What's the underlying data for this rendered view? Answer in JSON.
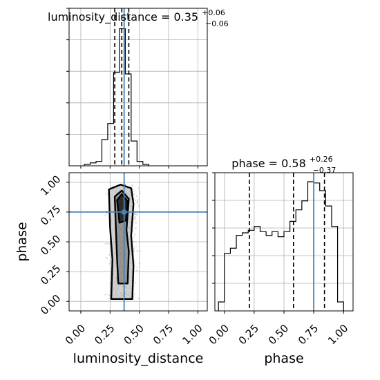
{
  "chart_data": {
    "type": "corner",
    "truths": {
      "luminosity_distance": 0.37,
      "phase": 0.75
    },
    "panels": {
      "lum_hist": {
        "type": "step-histogram",
        "title": {
          "main": "luminosity_distance = 0.35",
          "sup": "+0.06",
          "sub": "−0.06"
        },
        "xlim": [
          -0.1,
          1.08
        ],
        "ylim": [
          0,
          1
        ],
        "bins": [
          {
            "x0": 0.03,
            "x1": 0.08,
            "y": 0.01
          },
          {
            "x0": 0.08,
            "x1": 0.13,
            "y": 0.02
          },
          {
            "x0": 0.13,
            "x1": 0.18,
            "y": 0.03
          },
          {
            "x0": 0.18,
            "x1": 0.23,
            "y": 0.18
          },
          {
            "x0": 0.23,
            "x1": 0.28,
            "y": 0.29
          },
          {
            "x0": 0.28,
            "x1": 0.33,
            "y": 0.64
          },
          {
            "x0": 0.33,
            "x1": 0.38,
            "y": 0.94
          },
          {
            "x0": 0.38,
            "x1": 0.43,
            "y": 0.63
          },
          {
            "x0": 0.43,
            "x1": 0.48,
            "y": 0.17
          },
          {
            "x0": 0.48,
            "x1": 0.53,
            "y": 0.03
          },
          {
            "x0": 0.53,
            "x1": 0.58,
            "y": 0.01
          }
        ],
        "quantiles": [
          0.29,
          0.35,
          0.41
        ]
      },
      "phase_hist": {
        "type": "step-histogram",
        "title": {
          "main": "phase = 0.58",
          "sup": "+0.26",
          "sub": "−0.37"
        },
        "xlim": [
          -0.08,
          1.08
        ],
        "ylim": [
          0,
          1
        ],
        "bins": [
          {
            "x0": -0.05,
            "x1": 0.0,
            "y": 0.07
          },
          {
            "x0": 0.0,
            "x1": 0.05,
            "y": 0.45
          },
          {
            "x0": 0.05,
            "x1": 0.1,
            "y": 0.49
          },
          {
            "x0": 0.1,
            "x1": 0.15,
            "y": 0.59
          },
          {
            "x0": 0.15,
            "x1": 0.2,
            "y": 0.61
          },
          {
            "x0": 0.2,
            "x1": 0.25,
            "y": 0.63
          },
          {
            "x0": 0.25,
            "x1": 0.3,
            "y": 0.66
          },
          {
            "x0": 0.3,
            "x1": 0.35,
            "y": 0.62
          },
          {
            "x0": 0.35,
            "x1": 0.4,
            "y": 0.59
          },
          {
            "x0": 0.4,
            "x1": 0.45,
            "y": 0.62
          },
          {
            "x0": 0.45,
            "x1": 0.5,
            "y": 0.58
          },
          {
            "x0": 0.5,
            "x1": 0.55,
            "y": 0.62
          },
          {
            "x0": 0.55,
            "x1": 0.6,
            "y": 0.7
          },
          {
            "x0": 0.6,
            "x1": 0.65,
            "y": 0.79
          },
          {
            "x0": 0.65,
            "x1": 0.7,
            "y": 0.86
          },
          {
            "x0": 0.7,
            "x1": 0.75,
            "y": 1.01
          },
          {
            "x0": 0.75,
            "x1": 0.8,
            "y": 1.0
          },
          {
            "x0": 0.8,
            "x1": 0.85,
            "y": 0.94
          },
          {
            "x0": 0.85,
            "x1": 0.9,
            "y": 0.82
          },
          {
            "x0": 0.9,
            "x1": 0.95,
            "y": 0.66
          },
          {
            "x0": 0.95,
            "x1": 1.0,
            "y": 0.07
          }
        ],
        "quantiles": [
          0.21,
          0.58,
          0.84
        ]
      },
      "joint": {
        "type": "contour-2d",
        "xlim": [
          -0.1,
          1.08
        ],
        "ylim": [
          -0.08,
          1.08
        ],
        "points_center": [
          0.36,
          0.55
        ],
        "contours": [
          {
            "level": "outer",
            "path": [
              [
                0.26,
                0.02
              ],
              [
                0.44,
                0.02
              ],
              [
                0.45,
                0.3
              ],
              [
                0.43,
                0.55
              ],
              [
                0.45,
                0.82
              ],
              [
                0.43,
                0.95
              ],
              [
                0.34,
                0.98
              ],
              [
                0.24,
                0.94
              ],
              [
                0.25,
                0.62
              ],
              [
                0.27,
                0.35
              ]
            ]
          },
          {
            "level": "mid",
            "path": [
              [
                0.32,
                0.15
              ],
              [
                0.4,
                0.15
              ],
              [
                0.41,
                0.42
              ],
              [
                0.39,
                0.6
              ],
              [
                0.41,
                0.86
              ],
              [
                0.35,
                0.93
              ],
              [
                0.29,
                0.88
              ],
              [
                0.3,
                0.6
              ],
              [
                0.31,
                0.35
              ]
            ]
          },
          {
            "level": "inner",
            "path": [
              [
                0.33,
                0.66
              ],
              [
                0.39,
                0.68
              ],
              [
                0.4,
                0.84
              ],
              [
                0.35,
                0.9
              ],
              [
                0.31,
                0.85
              ]
            ]
          }
        ]
      }
    },
    "axes": {
      "x_ticks": [
        "0.00",
        "0.25",
        "0.50",
        "0.75",
        "1.00"
      ],
      "y_ticks": [
        "0.00",
        "0.25",
        "0.50",
        "0.75",
        "1.00"
      ],
      "x_label_left": "luminosity_distance",
      "x_label_right": "phase",
      "y_label": "phase"
    }
  }
}
